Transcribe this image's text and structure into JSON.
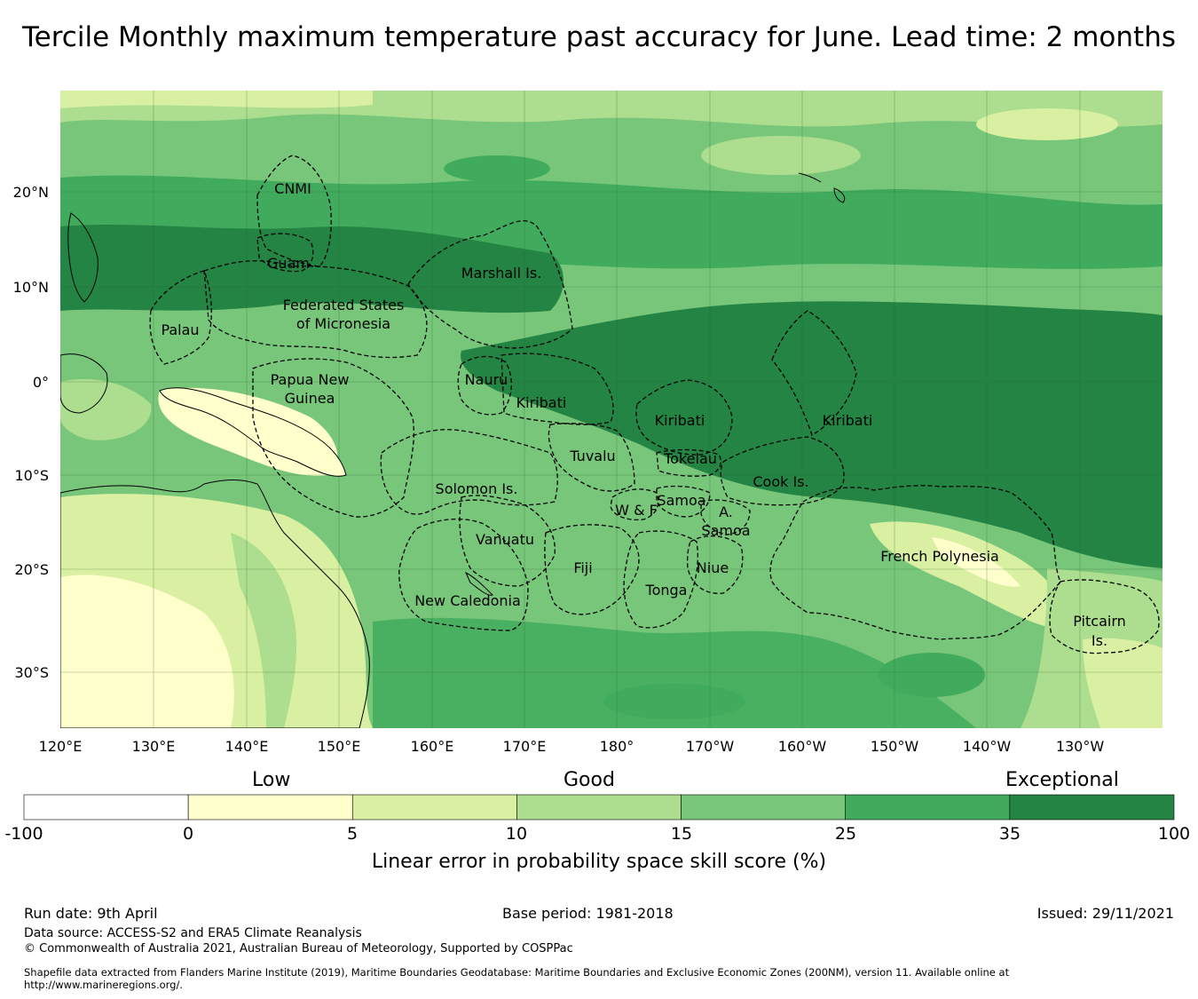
{
  "title": "Tercile Monthly maximum temperature past accuracy for June. Lead time: 2 months",
  "map": {
    "lat_labels": [
      "20°N",
      "10°N",
      "0°",
      "10°S",
      "20°S",
      "30°S"
    ],
    "lon_labels": [
      "120°E",
      "130°E",
      "140°E",
      "150°E",
      "160°E",
      "170°E",
      "180°",
      "170°W",
      "160°W",
      "150°W",
      "140°W",
      "130°W"
    ],
    "regions": [
      "CNMI",
      "Guam",
      "Marshall Is.",
      "Federated States",
      "of Micronesia",
      "Palau",
      "Papua New",
      "Guinea",
      "Nauru",
      "Kiribati",
      "Kiribati",
      "Kiribati",
      "Tuvalu",
      "Tokelau",
      "Cook Is.",
      "Solomon Is.",
      "Samoa",
      "W & F",
      "A.",
      "Samoa",
      "Vanuatu",
      "Fiji",
      "Niue",
      "Tonga",
      "French Polynesia",
      "New Caledonia",
      "Pitcairn",
      "Is."
    ]
  },
  "legend": {
    "categories": [
      "Low",
      "Good",
      "Exceptional"
    ],
    "ticks": [
      "-100",
      "0",
      "5",
      "10",
      "15",
      "25",
      "35",
      "100"
    ],
    "colors": [
      "#ffffff",
      "#ffffcc",
      "#d9f0a3",
      "#addd8e",
      "#78c679",
      "#41ab5d",
      "#238443"
    ],
    "title": "Linear error in probability space skill score (%)"
  },
  "footer": {
    "run_date": "Run date: 9th April",
    "base_period": "Base period: 1981-2018",
    "issued": "Issued: 29/11/2021",
    "data_source": "Data source: ACCESS-S2 and ERA5 Climate Reanalysis",
    "copyright": "© Commonwealth of Australia 2021, Australian Bureau of Meteorology, Supported by COSPPac",
    "shapefile_1": "Shapefile data extracted from Flanders Marine Institute (2019), Maritime Boundaries Geodatabase: Maritime Boundaries and Exclusive Economic Zones (200NM), version 11. Available online at",
    "shapefile_2": "http://www.marineregions.org/."
  }
}
